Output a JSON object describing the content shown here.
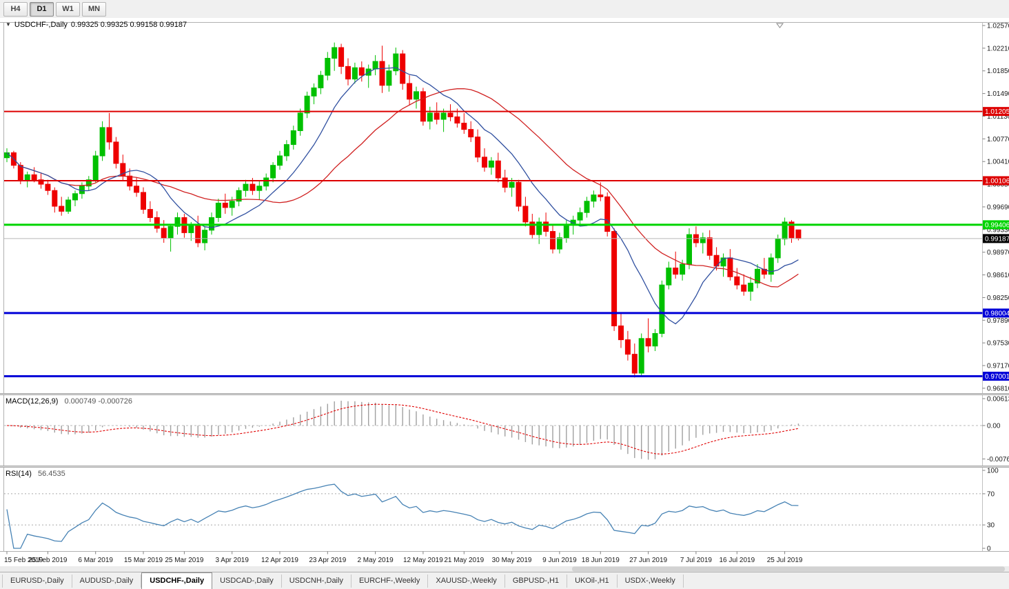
{
  "toolbar": {
    "timeframes": [
      {
        "label": "H4",
        "active": false
      },
      {
        "label": "D1",
        "active": true
      },
      {
        "label": "W1",
        "active": false
      },
      {
        "label": "MN",
        "active": false
      }
    ]
  },
  "icons": {
    "symbol_dropdown": "▼"
  },
  "chart_header": {
    "symbol": "USDCHF-,Daily",
    "ohlc": "0.99325 0.99325 0.99158 0.99187"
  },
  "macd_panel": {
    "name": "MACD(12,26,9)",
    "values": "0.000749 -0.000726"
  },
  "rsi_panel": {
    "name": "RSI(14)",
    "value": "56.4535"
  },
  "chart_data": {
    "type": "candlestick",
    "symbol": "USDCHF",
    "timeframe": "Daily",
    "ohlc_display": {
      "open": "0.99325",
      "high": "0.99325",
      "low": "0.99158",
      "close": "0.99187"
    },
    "candles": [
      [
        "2019-02-15",
        1.0047,
        1.0062,
        1.004,
        1.0055
      ],
      [
        "2019-02-18",
        1.0055,
        1.0058,
        1.003,
        1.0035
      ],
      [
        "2019-02-19",
        1.0035,
        1.004,
        1.0005,
        1.001
      ],
      [
        "2019-02-20",
        1.001,
        1.0025,
        1.0,
        1.002
      ],
      [
        "2019-02-21",
        1.002,
        1.0032,
        1.0008,
        1.0012
      ],
      [
        "2019-02-22",
        1.0012,
        1.0022,
        0.9998,
        1.0005
      ],
      [
        "2019-02-25",
        1.0005,
        1.0012,
        0.9988,
        0.9995
      ],
      [
        "2019-02-26",
        0.9995,
        1.0,
        0.996,
        0.997
      ],
      [
        "2019-02-27",
        0.997,
        0.9985,
        0.9955,
        0.9962
      ],
      [
        "2019-02-28",
        0.9962,
        0.9985,
        0.9958,
        0.998
      ],
      [
        "2019-03-01",
        0.998,
        0.9995,
        0.997,
        0.999
      ],
      [
        "2019-03-04",
        0.999,
        1.0008,
        0.9982,
        1.0002
      ],
      [
        "2019-03-05",
        1.0002,
        1.0018,
        0.9995,
        1.0012
      ],
      [
        "2019-03-06",
        1.0012,
        1.0058,
        1.0008,
        1.005
      ],
      [
        "2019-03-07",
        1.005,
        1.0105,
        1.0042,
        1.0095
      ],
      [
        "2019-03-08",
        1.0095,
        1.0118,
        1.006,
        1.0072
      ],
      [
        "2019-03-11",
        1.0072,
        1.008,
        1.003,
        1.0038
      ],
      [
        "2019-03-12",
        1.0038,
        1.0052,
        1.001,
        1.0018
      ],
      [
        "2019-03-13",
        1.0018,
        1.003,
        0.9995,
        1.0002
      ],
      [
        "2019-03-14",
        1.0002,
        1.0015,
        0.9985,
        0.9992
      ],
      [
        "2019-03-15",
        0.9992,
        1.0,
        0.9958,
        0.9965
      ],
      [
        "2019-03-18",
        0.9965,
        0.9978,
        0.9945,
        0.9952
      ],
      [
        "2019-03-19",
        0.9952,
        0.9962,
        0.9928,
        0.9935
      ],
      [
        "2019-03-20",
        0.9935,
        0.9948,
        0.9912,
        0.992
      ],
      [
        "2019-03-21",
        0.992,
        0.9942,
        0.9898,
        0.9938
      ],
      [
        "2019-03-22",
        0.9938,
        0.996,
        0.9925,
        0.9952
      ],
      [
        "2019-03-25",
        0.9952,
        0.9958,
        0.992,
        0.9928
      ],
      [
        "2019-03-26",
        0.9928,
        0.9945,
        0.9915,
        0.994
      ],
      [
        "2019-03-27",
        0.994,
        0.9955,
        0.9905,
        0.9912
      ],
      [
        "2019-03-28",
        0.9912,
        0.9938,
        0.99,
        0.9932
      ],
      [
        "2019-03-29",
        0.9932,
        0.996,
        0.9925,
        0.9952
      ],
      [
        "2019-04-01",
        0.9952,
        0.9982,
        0.9945,
        0.9975
      ],
      [
        "2019-04-02",
        0.9975,
        0.999,
        0.9958,
        0.9968
      ],
      [
        "2019-04-03",
        0.9968,
        0.9985,
        0.9955,
        0.9978
      ],
      [
        "2019-04-04",
        0.9978,
        1.0,
        0.997,
        0.9995
      ],
      [
        "2019-04-05",
        0.9995,
        1.0012,
        0.9985,
        1.0005
      ],
      [
        "2019-04-08",
        1.0005,
        1.0015,
        0.9988,
        0.9995
      ],
      [
        "2019-04-09",
        0.9995,
        1.001,
        0.998,
        1.0002
      ],
      [
        "2019-04-10",
        1.0002,
        1.0022,
        0.9995,
        1.0015
      ],
      [
        "2019-04-11",
        1.0015,
        1.004,
        1.0008,
        1.0035
      ],
      [
        "2019-04-12",
        1.0035,
        1.0058,
        1.0028,
        1.005
      ],
      [
        "2019-04-15",
        1.005,
        1.0075,
        1.0042,
        1.0068
      ],
      [
        "2019-04-16",
        1.0068,
        1.0098,
        1.006,
        1.009
      ],
      [
        "2019-04-17",
        1.009,
        1.0125,
        1.0082,
        1.0118
      ],
      [
        "2019-04-18",
        1.0118,
        1.0152,
        1.011,
        1.0145
      ],
      [
        "2019-04-19",
        1.0145,
        1.0165,
        1.0132,
        1.0158
      ],
      [
        "2019-04-22",
        1.0158,
        1.0185,
        1.0148,
        1.0178
      ],
      [
        "2019-04-23",
        1.0178,
        1.0215,
        1.017,
        1.0205
      ],
      [
        "2019-04-24",
        1.0205,
        1.023,
        1.0185,
        1.0222
      ],
      [
        "2019-04-25",
        1.0222,
        1.0228,
        1.018,
        1.0192
      ],
      [
        "2019-04-26",
        1.0192,
        1.0205,
        1.0162,
        1.0172
      ],
      [
        "2019-04-29",
        1.0172,
        1.0198,
        1.0165,
        1.019
      ],
      [
        "2019-04-30",
        1.019,
        1.02,
        1.0168,
        1.0178
      ],
      [
        "2019-05-01",
        1.0178,
        1.0195,
        1.0158,
        1.0188
      ],
      [
        "2019-05-02",
        1.0188,
        1.021,
        1.0178,
        1.02
      ],
      [
        "2019-05-03",
        1.02,
        1.0225,
        1.015,
        1.0162
      ],
      [
        "2019-05-06",
        1.0162,
        1.0195,
        1.0152,
        1.0185
      ],
      [
        "2019-05-07",
        1.0185,
        1.0222,
        1.0178,
        1.0212
      ],
      [
        "2019-05-08",
        1.0212,
        1.0218,
        1.0155,
        1.0165
      ],
      [
        "2019-05-09",
        1.0165,
        1.0178,
        1.013,
        1.014
      ],
      [
        "2019-05-10",
        1.014,
        1.016,
        1.0125,
        1.0152
      ],
      [
        "2019-05-13",
        1.0152,
        1.0158,
        1.0098,
        1.0105
      ],
      [
        "2019-05-14",
        1.0105,
        1.0128,
        1.0092,
        1.0118
      ],
      [
        "2019-05-15",
        1.0118,
        1.0135,
        1.01,
        1.0108
      ],
      [
        "2019-05-16",
        1.0108,
        1.0125,
        1.0088,
        1.0118
      ],
      [
        "2019-05-17",
        1.0118,
        1.0132,
        1.0105,
        1.0112
      ],
      [
        "2019-05-20",
        1.0112,
        1.0125,
        1.0095,
        1.0102
      ],
      [
        "2019-05-21",
        1.0102,
        1.0118,
        1.0085,
        1.0092
      ],
      [
        "2019-05-22",
        1.0092,
        1.0105,
        1.0072,
        1.008
      ],
      [
        "2019-05-23",
        1.008,
        1.0092,
        1.004,
        1.0048
      ],
      [
        "2019-05-24",
        1.0048,
        1.0062,
        1.0025,
        1.0032
      ],
      [
        "2019-05-27",
        1.0032,
        1.0048,
        1.002,
        1.0042
      ],
      [
        "2019-05-28",
        1.0042,
        1.0055,
        1.0008,
        1.0015
      ],
      [
        "2019-05-29",
        1.0015,
        1.0028,
        0.9992,
        1.0
      ],
      [
        "2019-05-30",
        1.0,
        1.0015,
        0.9985,
        1.0008
      ],
      [
        "2019-05-31",
        1.0008,
        1.0012,
        0.9962,
        0.997
      ],
      [
        "2019-06-03",
        0.997,
        0.9985,
        0.9938,
        0.9945
      ],
      [
        "2019-06-04",
        0.9945,
        0.9958,
        0.9918,
        0.9925
      ],
      [
        "2019-06-05",
        0.9925,
        0.9952,
        0.991,
        0.9945
      ],
      [
        "2019-06-06",
        0.9945,
        0.996,
        0.9922,
        0.993
      ],
      [
        "2019-06-07",
        0.993,
        0.9942,
        0.9895,
        0.9902
      ],
      [
        "2019-06-10",
        0.9902,
        0.9928,
        0.9895,
        0.992
      ],
      [
        "2019-06-11",
        0.992,
        0.9948,
        0.9912,
        0.994
      ],
      [
        "2019-06-12",
        0.994,
        0.9955,
        0.9925,
        0.9948
      ],
      [
        "2019-06-13",
        0.9948,
        0.9968,
        0.9938,
        0.996
      ],
      [
        "2019-06-14",
        0.996,
        0.9985,
        0.9952,
        0.9978
      ],
      [
        "2019-06-17",
        0.9978,
        0.9995,
        0.9968,
        0.9988
      ],
      [
        "2019-06-18",
        0.9988,
        1.0008,
        0.9978,
        0.9985
      ],
      [
        "2019-06-19",
        0.9985,
        0.9992,
        0.9922,
        0.993
      ],
      [
        "2019-06-20",
        0.993,
        0.9935,
        0.9772,
        0.978
      ],
      [
        "2019-06-21",
        0.978,
        0.98,
        0.9745,
        0.9758
      ],
      [
        "2019-06-24",
        0.9758,
        0.9772,
        0.9725,
        0.9735
      ],
      [
        "2019-06-25",
        0.9735,
        0.9752,
        0.9698,
        0.9705
      ],
      [
        "2019-06-26",
        0.9705,
        0.9768,
        0.97,
        0.976
      ],
      [
        "2019-06-27",
        0.976,
        0.9792,
        0.9738,
        0.9748
      ],
      [
        "2019-06-28",
        0.9748,
        0.9775,
        0.974,
        0.9768
      ],
      [
        "2019-07-01",
        0.9768,
        0.9852,
        0.9762,
        0.9845
      ],
      [
        "2019-07-02",
        0.9845,
        0.9882,
        0.9838,
        0.9872
      ],
      [
        "2019-07-03",
        0.9872,
        0.9898,
        0.9855,
        0.9862
      ],
      [
        "2019-07-04",
        0.9862,
        0.9885,
        0.9852,
        0.9878
      ],
      [
        "2019-07-05",
        0.9878,
        0.9935,
        0.987,
        0.9925
      ],
      [
        "2019-07-08",
        0.9925,
        0.9938,
        0.9905,
        0.9912
      ],
      [
        "2019-07-09",
        0.9912,
        0.9928,
        0.9895,
        0.992
      ],
      [
        "2019-07-10",
        0.992,
        0.9932,
        0.9885,
        0.9892
      ],
      [
        "2019-07-11",
        0.9892,
        0.9905,
        0.9868,
        0.9875
      ],
      [
        "2019-07-12",
        0.9875,
        0.9895,
        0.9858,
        0.9888
      ],
      [
        "2019-07-15",
        0.9888,
        0.9902,
        0.9852,
        0.9858
      ],
      [
        "2019-07-16",
        0.9858,
        0.9872,
        0.9838,
        0.9845
      ],
      [
        "2019-07-17",
        0.9845,
        0.9862,
        0.9828,
        0.9835
      ],
      [
        "2019-07-18",
        0.9835,
        0.9858,
        0.982,
        0.9848
      ],
      [
        "2019-07-19",
        0.9848,
        0.9878,
        0.984,
        0.987
      ],
      [
        "2019-07-22",
        0.987,
        0.9888,
        0.9855,
        0.9862
      ],
      [
        "2019-07-23",
        0.9862,
        0.9895,
        0.985,
        0.9888
      ],
      [
        "2019-07-24",
        0.9888,
        0.9925,
        0.988,
        0.9918
      ],
      [
        "2019-07-25",
        0.9918,
        0.9952,
        0.9908,
        0.9945
      ],
      [
        "2019-07-26",
        0.9945,
        0.9948,
        0.9912,
        0.992
      ],
      [
        "2019-07-29",
        0.99325,
        0.99325,
        0.99158,
        0.99187
      ]
    ],
    "levels": [
      {
        "price": 1.01205,
        "label": "1.01205",
        "color": "#dd0000",
        "width": 2
      },
      {
        "price": 1.00106,
        "label": "1.00106",
        "color": "#dd0000",
        "width": 2
      },
      {
        "price": 0.99406,
        "label": "0.99406",
        "color": "#00d400",
        "width": 3
      },
      {
        "price": 0.98004,
        "label": "0.98004",
        "color": "#0000d8",
        "width": 3
      },
      {
        "price": 0.97001,
        "label": "0.97001",
        "color": "#0000d8",
        "width": 3
      }
    ],
    "current_price": {
      "value": 0.99187,
      "label": "0.99187"
    },
    "y_axis_labels": [
      "1.02570",
      "1.02210",
      "1.01850",
      "1.01490",
      "1.01130",
      "1.00770",
      "1.00410",
      "1.00050",
      "0.99690",
      "0.99330",
      "0.98970",
      "0.98610",
      "0.98250",
      "0.97890",
      "0.97530",
      "0.97170",
      "0.96810"
    ],
    "x_axis_labels": [
      {
        "label": "15 Feb 2019",
        "index": 0
      },
      {
        "label": "25 Feb 2019",
        "index": 6
      },
      {
        "label": "6 Mar 2019",
        "index": 13
      },
      {
        "label": "15 Mar 2019",
        "index": 20
      },
      {
        "label": "25 Mar 2019",
        "index": 26
      },
      {
        "label": "3 Apr 2019",
        "index": 33
      },
      {
        "label": "12 Apr 2019",
        "index": 40
      },
      {
        "label": "23 Apr 2019",
        "index": 47
      },
      {
        "label": "2 May 2019",
        "index": 54
      },
      {
        "label": "12 May 2019",
        "index": 61
      },
      {
        "label": "21 May 2019",
        "index": 67
      },
      {
        "label": "30 May 2019",
        "index": 74
      },
      {
        "label": "9 Jun 2019",
        "index": 81
      },
      {
        "label": "18 Jun 2019",
        "index": 87
      },
      {
        "label": "27 Jun 2019",
        "index": 94
      },
      {
        "label": "7 Jul 2019",
        "index": 101
      },
      {
        "label": "16 Jul 2019",
        "index": 107
      },
      {
        "label": "25 Jul 2019",
        "index": 114
      }
    ],
    "macd": {
      "params": [
        12,
        26,
        9
      ],
      "axis_labels": [
        {
          "v": 0.00613,
          "label": "0.00613"
        },
        {
          "v": 0,
          "label": "0.00"
        },
        {
          "v": -0.00761,
          "label": "-0.00761"
        }
      ]
    },
    "rsi": {
      "period": 14,
      "levels": [
        70,
        30
      ],
      "axis_labels": [
        {
          "v": 100,
          "label": "100"
        },
        {
          "v": 70,
          "label": "70"
        },
        {
          "v": 30,
          "label": "30"
        },
        {
          "v": 0,
          "label": "0"
        }
      ]
    },
    "colors": {
      "up": "#00c000",
      "down": "#ee0000",
      "ma_fast": "#3050a0",
      "ma_slow": "#d02020",
      "macd_hist": "#a0a0a0",
      "macd_signal": "#e00000",
      "rsi": "#4682b4",
      "price_line": "#b8b8b8",
      "badge_current": "#000000"
    }
  },
  "tabs": {
    "items": [
      {
        "label": "EURUSD-,Daily",
        "active": false
      },
      {
        "label": "AUDUSD-,Daily",
        "active": false
      },
      {
        "label": "USDCHF-,Daily",
        "active": true
      },
      {
        "label": "USDCAD-,Daily",
        "active": false
      },
      {
        "label": "USDCNH-,Daily",
        "active": false
      },
      {
        "label": "EURCHF-,Weekly",
        "active": false
      },
      {
        "label": "XAUUSD-,Weekly",
        "active": false
      },
      {
        "label": "GBPUSD-,H1",
        "active": false
      },
      {
        "label": "UKOil-,H1",
        "active": false
      },
      {
        "label": "USDX-,Weekly",
        "active": false
      }
    ]
  }
}
